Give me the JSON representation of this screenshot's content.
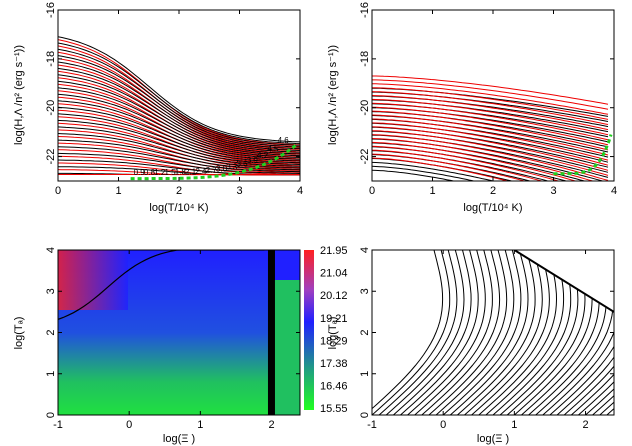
{
  "chart_data": [
    {
      "type": "line",
      "panel": "top-left",
      "xlabel": "log(T/10⁴ K)",
      "ylabel": "log(H,Λ /n² (erg s⁻¹))",
      "xlim": [
        0,
        4
      ],
      "ylim": [
        -23,
        -16
      ],
      "xticks": [
        "0",
        "1",
        "2",
        "3",
        "4"
      ],
      "yticks": [
        "-16",
        "-18",
        "-20",
        "-22"
      ],
      "series": [
        {
          "color": "#000000",
          "count": 22
        },
        {
          "color": "#ff0000",
          "count": 22
        },
        {
          "color": "#00cc00",
          "style": "dashed"
        }
      ],
      "annotations": [
        "0.9",
        "0.8",
        "1.2",
        "1.5",
        "1.8",
        "2.1",
        "2.4",
        "2.7",
        "3.0",
        "3.3",
        "3.6",
        "3.9",
        "4.2",
        "4.5",
        "4.6"
      ]
    },
    {
      "type": "line",
      "panel": "top-right",
      "xlabel": "log(T/10⁴ K)",
      "ylabel": "log(H,Λ /n² (erg s⁻¹))",
      "xlim": [
        0,
        4
      ],
      "ylim": [
        -23,
        -16
      ],
      "xticks": [
        "0",
        "1",
        "2",
        "3",
        "4"
      ],
      "yticks": [
        "-16",
        "-18",
        "-20",
        "-22"
      ],
      "series": [
        {
          "color": "#000000",
          "count": 22
        },
        {
          "color": "#ff0000",
          "count": 22
        },
        {
          "color": "#00cc00",
          "style": "dashed"
        }
      ]
    },
    {
      "type": "heatmap",
      "panel": "bottom-left",
      "xlabel": "log(Ξ )",
      "ylabel": "log(Tₐ)",
      "xlim": [
        -1,
        2.4
      ],
      "ylim": [
        0,
        4
      ],
      "xticks": [
        "-1",
        "0",
        "1",
        "2"
      ],
      "yticks": [
        "0",
        "1",
        "2",
        "3",
        "4"
      ],
      "colorbar": {
        "labels": [
          "21.95",
          "21.04",
          "20.12",
          "19.21",
          "18.29",
          "17.38",
          "16.46",
          "15.55"
        ],
        "colors": [
          "#ff2020",
          "#a040c0",
          "#2020ff",
          "#20a080",
          "#20ff20"
        ]
      }
    },
    {
      "type": "line",
      "panel": "bottom-right",
      "xlabel": "log(Ξ )",
      "ylabel": "log(Tₐ)",
      "xlim": [
        -1,
        2.4
      ],
      "ylim": [
        0,
        4
      ],
      "xticks": [
        "-1",
        "0",
        "1",
        "2"
      ],
      "yticks": [
        "0",
        "1",
        "2",
        "3",
        "4"
      ],
      "series": [
        {
          "color": "#000000",
          "count": 45
        }
      ]
    }
  ]
}
